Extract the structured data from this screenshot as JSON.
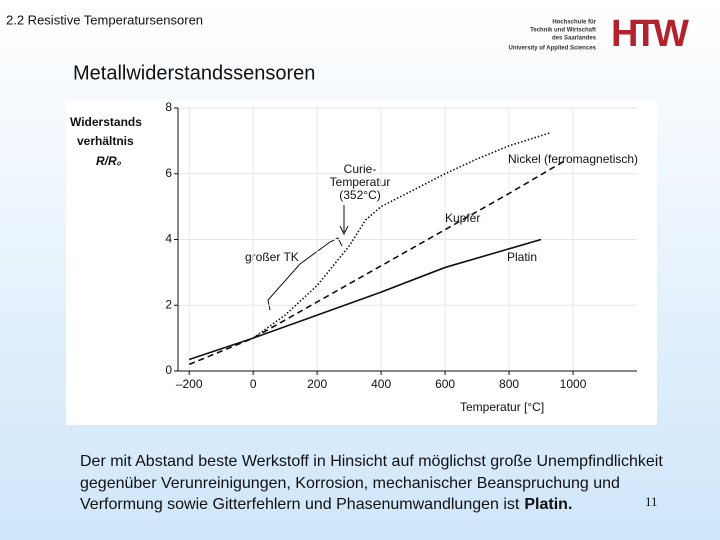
{
  "header": {
    "section": "2.2  Resistive Temperatursensoren",
    "logo_lines": [
      "Hochschule für",
      "Technik und Wirtschaft",
      "des Saarlandes",
      "University of Applied Sciences"
    ],
    "logo_mark": "HTW"
  },
  "title": "Metallwiderstandssensoren",
  "chart_data": {
    "type": "line",
    "ylabel": [
      "Widerstands",
      "verhältnis",
      "R/R₀"
    ],
    "xlabel": "Temperatur [°C]",
    "xlim": [
      -235,
      1200
    ],
    "ylim": [
      0,
      8
    ],
    "xticks": [
      {
        "value": -200,
        "label": "–200"
      },
      0,
      200,
      400,
      600,
      800,
      1000
    ],
    "yticks": [
      0,
      2,
      4,
      6,
      8
    ],
    "series": [
      {
        "name": "Nickel (ferromagnetisch)",
        "color": "#111111",
        "dash": "dotted",
        "x": [
          0,
          100,
          200,
          300,
          352,
          400,
          500,
          600,
          700,
          800,
          930
        ],
        "values": [
          1,
          1.7,
          2.6,
          3.8,
          4.6,
          5.0,
          5.5,
          6.0,
          6.45,
          6.85,
          7.25
        ]
      },
      {
        "name": "Kupfer",
        "color": "#111111",
        "dash": "dashed",
        "x": [
          -200,
          0,
          200,
          400,
          600,
          800,
          975
        ],
        "values": [
          0.2,
          1,
          2.1,
          3.2,
          4.3,
          5.4,
          6.4
        ]
      },
      {
        "name": "Platin",
        "color": "#111111",
        "dash": "solid",
        "x": [
          -200,
          0,
          200,
          400,
          600,
          900
        ],
        "values": [
          0.35,
          1,
          1.7,
          2.4,
          3.15,
          4.0
        ]
      }
    ],
    "annotations": {
      "curie": [
        "Curie-",
        "Temperatur",
        "(352°C)"
      ],
      "tk": "großer TK"
    }
  },
  "body": {
    "lines": [
      "Der mit Abstand beste Werkstoff in Hinsicht auf möglichst große Unempfindlichkeit",
      "gegenüber Verunreinigungen, Korrosion, mechanischer Beanspruchung und",
      "Verformung sowie Gitterfehlern und Phasenumwandlungen ist"
    ],
    "bold": "Platin."
  },
  "page_number": "11"
}
